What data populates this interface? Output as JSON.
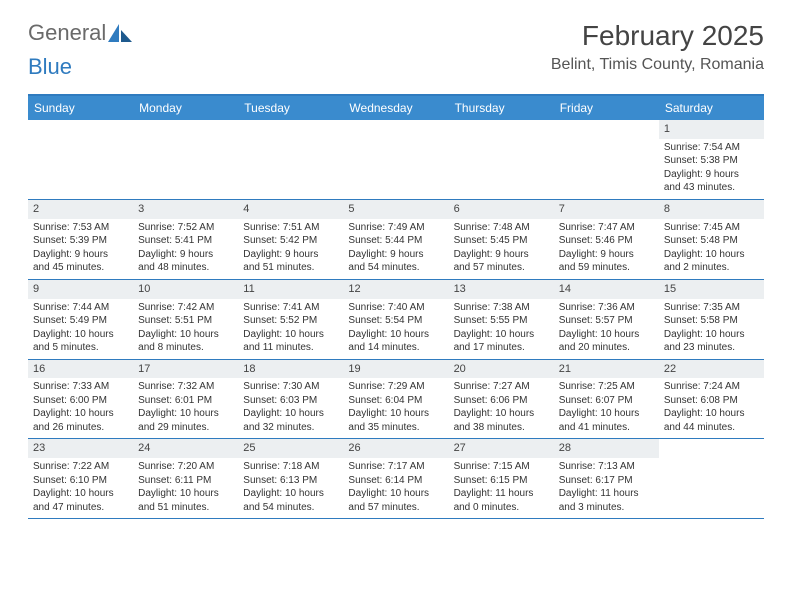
{
  "logo": {
    "text_general": "General",
    "text_blue": "Blue"
  },
  "title": "February 2025",
  "location": "Belint, Timis County, Romania",
  "colors": {
    "header_bg": "#3a8bce",
    "header_text": "#ffffff",
    "border": "#2f7bbf",
    "daynum_bg": "#eceff1",
    "body_text": "#333333",
    "title_text": "#444444",
    "location_text": "#555555",
    "logo_gray": "#6a6a6a",
    "logo_blue": "#2f7bbf",
    "page_bg": "#ffffff"
  },
  "day_names": [
    "Sunday",
    "Monday",
    "Tuesday",
    "Wednesday",
    "Thursday",
    "Friday",
    "Saturday"
  ],
  "weeks": [
    [
      null,
      null,
      null,
      null,
      null,
      null,
      {
        "n": "1",
        "sr": "Sunrise: 7:54 AM",
        "ss": "Sunset: 5:38 PM",
        "dl1": "Daylight: 9 hours",
        "dl2": "and 43 minutes."
      }
    ],
    [
      {
        "n": "2",
        "sr": "Sunrise: 7:53 AM",
        "ss": "Sunset: 5:39 PM",
        "dl1": "Daylight: 9 hours",
        "dl2": "and 45 minutes."
      },
      {
        "n": "3",
        "sr": "Sunrise: 7:52 AM",
        "ss": "Sunset: 5:41 PM",
        "dl1": "Daylight: 9 hours",
        "dl2": "and 48 minutes."
      },
      {
        "n": "4",
        "sr": "Sunrise: 7:51 AM",
        "ss": "Sunset: 5:42 PM",
        "dl1": "Daylight: 9 hours",
        "dl2": "and 51 minutes."
      },
      {
        "n": "5",
        "sr": "Sunrise: 7:49 AM",
        "ss": "Sunset: 5:44 PM",
        "dl1": "Daylight: 9 hours",
        "dl2": "and 54 minutes."
      },
      {
        "n": "6",
        "sr": "Sunrise: 7:48 AM",
        "ss": "Sunset: 5:45 PM",
        "dl1": "Daylight: 9 hours",
        "dl2": "and 57 minutes."
      },
      {
        "n": "7",
        "sr": "Sunrise: 7:47 AM",
        "ss": "Sunset: 5:46 PM",
        "dl1": "Daylight: 9 hours",
        "dl2": "and 59 minutes."
      },
      {
        "n": "8",
        "sr": "Sunrise: 7:45 AM",
        "ss": "Sunset: 5:48 PM",
        "dl1": "Daylight: 10 hours",
        "dl2": "and 2 minutes."
      }
    ],
    [
      {
        "n": "9",
        "sr": "Sunrise: 7:44 AM",
        "ss": "Sunset: 5:49 PM",
        "dl1": "Daylight: 10 hours",
        "dl2": "and 5 minutes."
      },
      {
        "n": "10",
        "sr": "Sunrise: 7:42 AM",
        "ss": "Sunset: 5:51 PM",
        "dl1": "Daylight: 10 hours",
        "dl2": "and 8 minutes."
      },
      {
        "n": "11",
        "sr": "Sunrise: 7:41 AM",
        "ss": "Sunset: 5:52 PM",
        "dl1": "Daylight: 10 hours",
        "dl2": "and 11 minutes."
      },
      {
        "n": "12",
        "sr": "Sunrise: 7:40 AM",
        "ss": "Sunset: 5:54 PM",
        "dl1": "Daylight: 10 hours",
        "dl2": "and 14 minutes."
      },
      {
        "n": "13",
        "sr": "Sunrise: 7:38 AM",
        "ss": "Sunset: 5:55 PM",
        "dl1": "Daylight: 10 hours",
        "dl2": "and 17 minutes."
      },
      {
        "n": "14",
        "sr": "Sunrise: 7:36 AM",
        "ss": "Sunset: 5:57 PM",
        "dl1": "Daylight: 10 hours",
        "dl2": "and 20 minutes."
      },
      {
        "n": "15",
        "sr": "Sunrise: 7:35 AM",
        "ss": "Sunset: 5:58 PM",
        "dl1": "Daylight: 10 hours",
        "dl2": "and 23 minutes."
      }
    ],
    [
      {
        "n": "16",
        "sr": "Sunrise: 7:33 AM",
        "ss": "Sunset: 6:00 PM",
        "dl1": "Daylight: 10 hours",
        "dl2": "and 26 minutes."
      },
      {
        "n": "17",
        "sr": "Sunrise: 7:32 AM",
        "ss": "Sunset: 6:01 PM",
        "dl1": "Daylight: 10 hours",
        "dl2": "and 29 minutes."
      },
      {
        "n": "18",
        "sr": "Sunrise: 7:30 AM",
        "ss": "Sunset: 6:03 PM",
        "dl1": "Daylight: 10 hours",
        "dl2": "and 32 minutes."
      },
      {
        "n": "19",
        "sr": "Sunrise: 7:29 AM",
        "ss": "Sunset: 6:04 PM",
        "dl1": "Daylight: 10 hours",
        "dl2": "and 35 minutes."
      },
      {
        "n": "20",
        "sr": "Sunrise: 7:27 AM",
        "ss": "Sunset: 6:06 PM",
        "dl1": "Daylight: 10 hours",
        "dl2": "and 38 minutes."
      },
      {
        "n": "21",
        "sr": "Sunrise: 7:25 AM",
        "ss": "Sunset: 6:07 PM",
        "dl1": "Daylight: 10 hours",
        "dl2": "and 41 minutes."
      },
      {
        "n": "22",
        "sr": "Sunrise: 7:24 AM",
        "ss": "Sunset: 6:08 PM",
        "dl1": "Daylight: 10 hours",
        "dl2": "and 44 minutes."
      }
    ],
    [
      {
        "n": "23",
        "sr": "Sunrise: 7:22 AM",
        "ss": "Sunset: 6:10 PM",
        "dl1": "Daylight: 10 hours",
        "dl2": "and 47 minutes."
      },
      {
        "n": "24",
        "sr": "Sunrise: 7:20 AM",
        "ss": "Sunset: 6:11 PM",
        "dl1": "Daylight: 10 hours",
        "dl2": "and 51 minutes."
      },
      {
        "n": "25",
        "sr": "Sunrise: 7:18 AM",
        "ss": "Sunset: 6:13 PM",
        "dl1": "Daylight: 10 hours",
        "dl2": "and 54 minutes."
      },
      {
        "n": "26",
        "sr": "Sunrise: 7:17 AM",
        "ss": "Sunset: 6:14 PM",
        "dl1": "Daylight: 10 hours",
        "dl2": "and 57 minutes."
      },
      {
        "n": "27",
        "sr": "Sunrise: 7:15 AM",
        "ss": "Sunset: 6:15 PM",
        "dl1": "Daylight: 11 hours",
        "dl2": "and 0 minutes."
      },
      {
        "n": "28",
        "sr": "Sunrise: 7:13 AM",
        "ss": "Sunset: 6:17 PM",
        "dl1": "Daylight: 11 hours",
        "dl2": "and 3 minutes."
      },
      null
    ]
  ]
}
